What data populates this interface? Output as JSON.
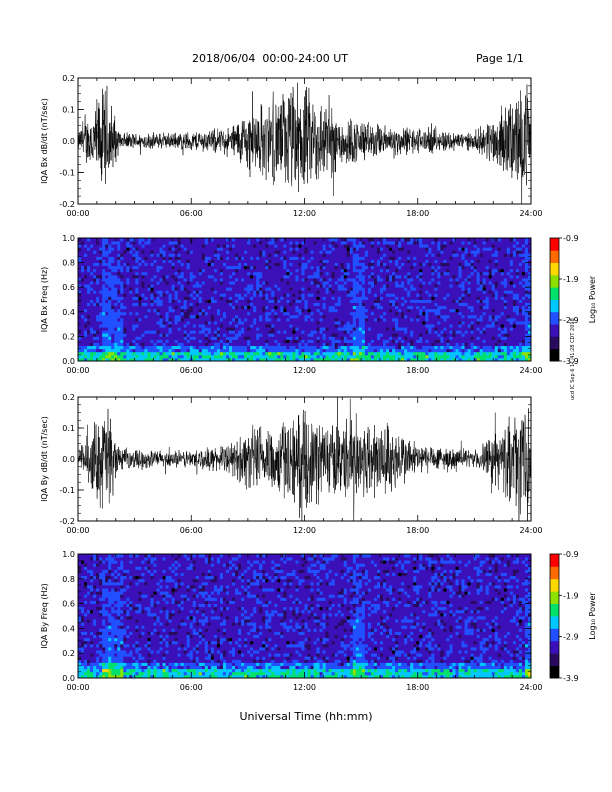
{
  "header": {
    "date_range": "2018/06/04  00:00-24:00 UT",
    "page": "Page 1/1"
  },
  "footer": {
    "xlabel": "Universal Time (hh:mm)",
    "stamp": "ucd IC Sep 6 11:41:28 CDT 2018"
  },
  "colors": {
    "waveform": "#000000",
    "colorbar": [
      "#000000",
      "#2a0a5e",
      "#3b10b8",
      "#2050ff",
      "#00c8ff",
      "#00e06a",
      "#8ee000",
      "#ffd800",
      "#ff6a00",
      "#ff0000"
    ]
  },
  "chart_data": [
    {
      "type": "line",
      "ylabel": "IQA Bx dB/dt (nT/sec)",
      "xlim": [
        0,
        24
      ],
      "ylim": [
        -0.2,
        0.2
      ],
      "xticks": [
        "00:00",
        "06:00",
        "12:00",
        "18:00",
        "24:00"
      ],
      "yticks": [
        "0.2",
        "0.1",
        "0.0",
        "-0.1",
        "-0.2"
      ],
      "envelope": [
        {
          "x": 0,
          "amp": 0.03
        },
        {
          "x": 1.5,
          "amp": 0.22
        },
        {
          "x": 2.2,
          "amp": 0.03
        },
        {
          "x": 5.0,
          "amp": 0.03
        },
        {
          "x": 8.0,
          "amp": 0.05
        },
        {
          "x": 9.0,
          "amp": 0.12
        },
        {
          "x": 10.5,
          "amp": 0.16
        },
        {
          "x": 11.5,
          "amp": 0.22
        },
        {
          "x": 12.5,
          "amp": 0.18
        },
        {
          "x": 14.0,
          "amp": 0.1
        },
        {
          "x": 16.0,
          "amp": 0.06
        },
        {
          "x": 18.0,
          "amp": 0.05
        },
        {
          "x": 21.0,
          "amp": 0.03
        },
        {
          "x": 23.9,
          "amp": 0.22
        },
        {
          "x": 24,
          "amp": 0.03
        }
      ]
    },
    {
      "type": "heatmap",
      "ylabel": "IQA Bx Freq (Hz)",
      "colorbar_label": "Log₁₀ Power",
      "colorbar_ticks": [
        "-0.9",
        "-1.9",
        "-2.9",
        "-3.9"
      ],
      "xlim": [
        0,
        24
      ],
      "ylim": [
        0.0,
        1.0
      ],
      "xticks": [
        "00:00",
        "06:00",
        "12:00",
        "18:00",
        "24:00"
      ],
      "yticks": [
        "1.0",
        "0.8",
        "0.6",
        "0.4",
        "0.2",
        "0.0"
      ],
      "bursts": [
        1.5,
        2.0,
        14.8,
        23.8
      ]
    },
    {
      "type": "line",
      "ylabel": "IQA By dB/dt (nT/sec)",
      "xlim": [
        0,
        24
      ],
      "ylim": [
        -0.2,
        0.2
      ],
      "xticks": [
        "00:00",
        "06:00",
        "12:00",
        "18:00",
        "24:00"
      ],
      "yticks": [
        "0.2",
        "0.1",
        "0.0",
        "-0.1",
        "-0.2"
      ],
      "envelope": [
        {
          "x": 0,
          "amp": 0.03
        },
        {
          "x": 1.5,
          "amp": 0.22
        },
        {
          "x": 2.2,
          "amp": 0.04
        },
        {
          "x": 5.0,
          "amp": 0.03
        },
        {
          "x": 8.0,
          "amp": 0.05
        },
        {
          "x": 9.0,
          "amp": 0.12
        },
        {
          "x": 10.5,
          "amp": 0.14
        },
        {
          "x": 12.0,
          "amp": 0.18
        },
        {
          "x": 13.5,
          "amp": 0.14
        },
        {
          "x": 15.0,
          "amp": 0.16
        },
        {
          "x": 16.5,
          "amp": 0.14
        },
        {
          "x": 18.0,
          "amp": 0.06
        },
        {
          "x": 21.0,
          "amp": 0.03
        },
        {
          "x": 23.9,
          "amp": 0.22
        },
        {
          "x": 24,
          "amp": 0.03
        }
      ]
    },
    {
      "type": "heatmap",
      "ylabel": "IQA By Freq (Hz)",
      "colorbar_label": "Log₁₀ Power",
      "colorbar_ticks": [
        "-0.9",
        "-1.9",
        "-2.9",
        "-3.9"
      ],
      "xlim": [
        0,
        24
      ],
      "ylim": [
        0.0,
        1.0
      ],
      "xticks": [
        "00:00",
        "06:00",
        "12:00",
        "18:00",
        "24:00"
      ],
      "yticks": [
        "1.0",
        "0.8",
        "0.6",
        "0.4",
        "0.2",
        "0.0"
      ],
      "bursts": [
        1.5,
        2.0,
        14.8,
        23.8
      ]
    }
  ]
}
